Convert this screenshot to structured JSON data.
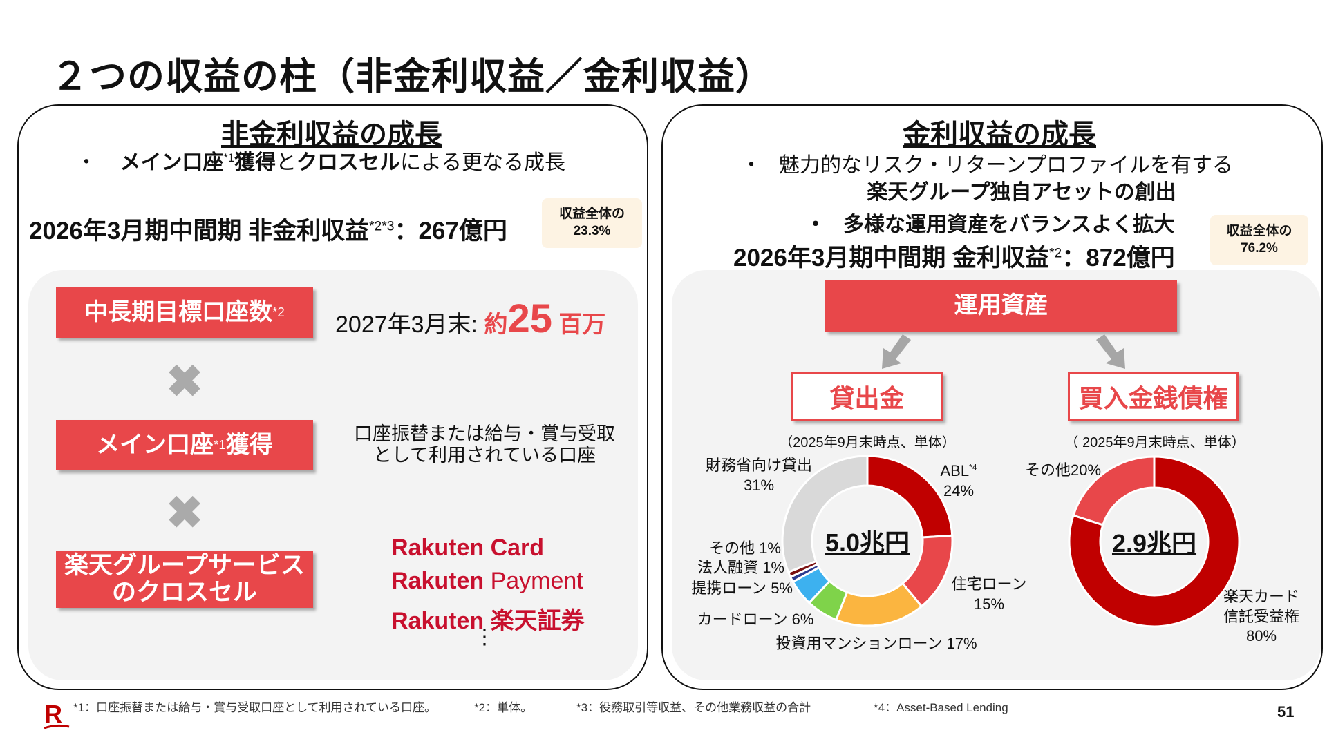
{
  "title": "２つの収益の柱（非金利収益／金利収益）",
  "left": {
    "heading": "非金利収益の成長",
    "bullet_dot": "・",
    "bullet_parts": [
      "メイン口座",
      "*1",
      "獲得",
      "と",
      "クロスセル",
      "による更なる成長"
    ],
    "revenue_label": "2026年3月期中間期 非金利収益",
    "revenue_sup": "*2*3",
    "revenue_value": "：267億円",
    "badge": [
      "収益全体の",
      "23.3%"
    ],
    "target_box": "中長期目標口座数",
    "target_sup": "*2",
    "target_prefix": "2027年3月末: ",
    "target_approx": "約",
    "target_num": "25",
    "target_unit": " 百万",
    "times": "✖",
    "main_box": "メイン口座",
    "main_sup": "*1",
    "main_box2": "獲得",
    "main_desc": [
      "口座振替または給与・賞与受取",
      "として利用されている口座"
    ],
    "cross_box": [
      "楽天グループサービス",
      "のクロスセル"
    ],
    "logos": [
      [
        "Rakuten",
        "Card"
      ],
      [
        "Rakuten",
        "Payment"
      ],
      [
        "Rakuten",
        "楽天証券"
      ]
    ],
    "ellipsis": "⋮"
  },
  "right": {
    "heading": "金利収益の成長",
    "bullet_dot": "・",
    "line1": "魅力的なリスク・リターンプロファイルを有する",
    "line2": "楽天グループ独自アセットの創出",
    "line3": "多様な運用資産をバランスよく拡大",
    "revenue_label": "2026年3月期中間期 金利収益",
    "revenue_sup": "*2",
    "revenue_value": "：872億円",
    "badge": [
      "収益全体の",
      "76.2%"
    ],
    "assets_box": "運用資産",
    "loans_box": "貸出金",
    "receivables_box": "買入金銭債権",
    "caption_loans": "（2025年9月末時点、単体）",
    "caption_receivables": "（ 2025年9月末時点、単体）"
  },
  "chart_data": [
    {
      "type": "pie",
      "donut": true,
      "center_label": "5.0兆円",
      "slices": [
        {
          "label": "ABL",
          "note": "*4",
          "value": 24,
          "color": "#c00000"
        },
        {
          "label": "住宅ローン",
          "value": 15,
          "color": "#e8474a"
        },
        {
          "label": "投資用マンションローン",
          "value": 17,
          "color": "#fbb540"
        },
        {
          "label": "カードローン",
          "value": 6,
          "color": "#7fd34a"
        },
        {
          "label": "提携ローン",
          "value": 5,
          "color": "#3db1ef"
        },
        {
          "label": "法人融資",
          "value": 1,
          "color": "#2b3a8f"
        },
        {
          "label": "その他",
          "value": 1,
          "color": "#7a1010"
        },
        {
          "label": "財務省向け貸出",
          "value": 31,
          "color": "#d9d9d9"
        }
      ],
      "labels_text": {
        "abl": "ABL",
        "abl_sup": "*4",
        "abl_pct": "24%",
        "housing": "住宅ローン",
        "housing_pct": "15%",
        "invest": "投資用マンションローン 17%",
        "card": "カードローン 6%",
        "partner": "提携ローン 5%",
        "corp": "法人融資 1%",
        "other": "その他 1%",
        "mof": "財務省向け貸出",
        "mof_pct": "31%"
      }
    },
    {
      "type": "pie",
      "donut": true,
      "center_label": "2.9兆円",
      "slices": [
        {
          "label": "楽天カード信託受益権",
          "value": 80,
          "color": "#c00000"
        },
        {
          "label": "その他",
          "value": 20,
          "color": "#e8474a"
        }
      ],
      "labels_text": {
        "card1": "楽天カード",
        "card2": "信託受益権",
        "card_pct": "80%",
        "other": "その他20%"
      }
    }
  ],
  "footnotes": [
    "*1：口座振替または給与・賞与受取口座として利用されている口座。",
    "*2：単体。",
    "*3：役務取引等収益、その他業務収益の合計",
    "*4：Asset-Based Lending"
  ],
  "logo": "R",
  "page_number": "51"
}
